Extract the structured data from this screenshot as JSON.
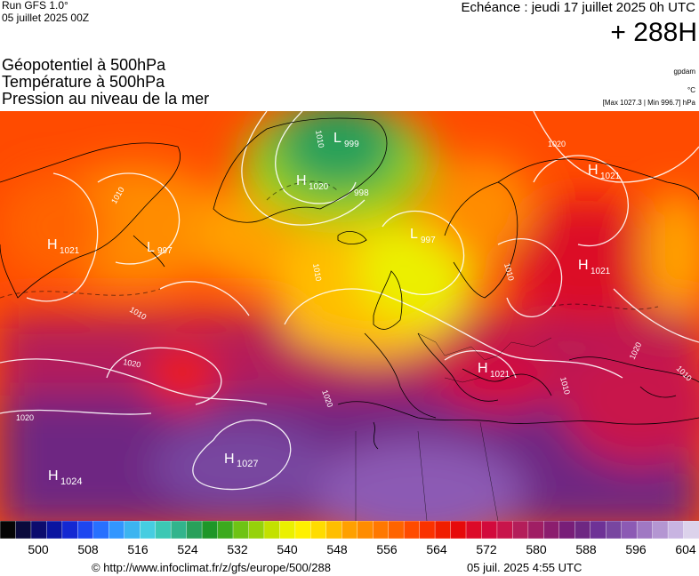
{
  "header": {
    "run": "Run GFS 1.0°",
    "run_date": "05 juillet 2025 00Z",
    "echeance": "Echéance : jeudi 17 juillet 2025 0h UTC",
    "horizon": "+ 288H"
  },
  "fields": [
    "Géopotentiel à 500hPa",
    "Température à 500hPa",
    "Pression au niveau de la mer"
  ],
  "units": {
    "geopotential": "gpdam",
    "temperature": "°C",
    "range": "[Max 1027.3 | Min 996.7] hPa"
  },
  "colors": {
    "scale": [
      "#050505",
      "#0a0a3c",
      "#0c0c6e",
      "#0a14a0",
      "#1428d2",
      "#1e46f0",
      "#2870ff",
      "#3296ff",
      "#3cb4f0",
      "#46cde1",
      "#3cc8b4",
      "#32b48c",
      "#28a05a",
      "#1e9628",
      "#3caa1e",
      "#6ec314",
      "#96d20a",
      "#c3e100",
      "#ebf000",
      "#fff000",
      "#ffdc00",
      "#ffbe00",
      "#ffa000",
      "#ff8c00",
      "#ff7800",
      "#ff6400",
      "#ff4b00",
      "#fa3200",
      "#f01e00",
      "#e60a0a",
      "#dc0a28",
      "#d20a3c",
      "#c8144b",
      "#b41e5a",
      "#a01e64",
      "#8c1e6e",
      "#781e78",
      "#6e2882",
      "#6e3296",
      "#7846a0",
      "#8c5ab4",
      "#a078c3",
      "#b496d2",
      "#c8b4e1",
      "#dcd2eb"
    ]
  },
  "colorbar": {
    "ticks": [
      "500",
      "508",
      "516",
      "524",
      "532",
      "540",
      "548",
      "556",
      "564",
      "572",
      "580",
      "588",
      "596",
      "604"
    ]
  },
  "map_labels": {
    "pressure_centers": [
      {
        "type": "H",
        "value": "1021"
      },
      {
        "type": "H",
        "value": "1020"
      },
      {
        "type": "L",
        "value": "999"
      },
      {
        "type": "L",
        "value": "997"
      },
      {
        "type": "L",
        "value": "997"
      },
      {
        "type": "H",
        "value": "1021"
      },
      {
        "type": "H",
        "value": "1021"
      },
      {
        "type": "H",
        "value": "1021"
      },
      {
        "type": "H",
        "value": "1027"
      },
      {
        "type": "H",
        "value": "1024"
      },
      {
        "type": "",
        "value": "998"
      }
    ],
    "isobar_labels": [
      "1010",
      "1010",
      "1010",
      "1020",
      "1020",
      "1020",
      "1020",
      "1010",
      "1010",
      "1010",
      "1010",
      "1020"
    ]
  },
  "footer": {
    "link": "© http://www.infoclimat.fr/z/gfs/europe/500/288",
    "date": "05 juil. 2025  4:55 UTC"
  }
}
